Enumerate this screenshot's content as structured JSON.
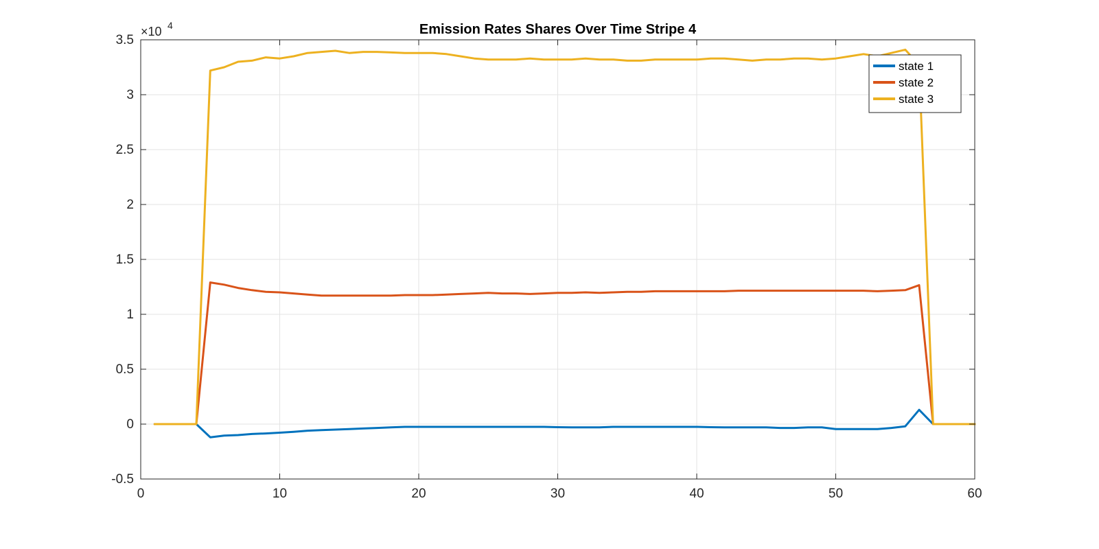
{
  "chart_data": {
    "type": "line",
    "title": "Emission Rates Shares Over Time Stripe 4",
    "xlabel": "",
    "ylabel": "",
    "xlim": [
      0,
      60
    ],
    "ylim": [
      -0.5,
      3.5
    ],
    "y_multiplier_label": {
      "base": "×10",
      "exponent": "4"
    },
    "x_ticks": [
      0,
      10,
      20,
      30,
      40,
      50,
      60
    ],
    "x_tick_labels": [
      "0",
      "10",
      "20",
      "30",
      "40",
      "50",
      "60"
    ],
    "y_ticks": [
      -0.5,
      0,
      0.5,
      1,
      1.5,
      2,
      2.5,
      3,
      3.5
    ],
    "y_tick_labels": [
      "-0.5",
      "0",
      "0.5",
      "1",
      "1.5",
      "2",
      "2.5",
      "3",
      "3.5"
    ],
    "grid": true,
    "legend_position": "top-right",
    "x": [
      1,
      2,
      3,
      4,
      5,
      6,
      7,
      8,
      9,
      10,
      11,
      12,
      13,
      14,
      15,
      16,
      17,
      18,
      19,
      20,
      21,
      22,
      23,
      24,
      25,
      26,
      27,
      28,
      29,
      30,
      31,
      32,
      33,
      34,
      35,
      36,
      37,
      38,
      39,
      40,
      41,
      42,
      43,
      44,
      45,
      46,
      47,
      48,
      49,
      50,
      51,
      52,
      53,
      54,
      55,
      56,
      57,
      58,
      59,
      60
    ],
    "series": [
      {
        "name": "state 1",
        "color": "#0072BD",
        "values": [
          0,
          0,
          0,
          0,
          -0.12,
          -0.105,
          -0.1,
          -0.09,
          -0.085,
          -0.078,
          -0.07,
          -0.06,
          -0.055,
          -0.05,
          -0.045,
          -0.04,
          -0.035,
          -0.03,
          -0.025,
          -0.025,
          -0.025,
          -0.025,
          -0.025,
          -0.025,
          -0.025,
          -0.025,
          -0.025,
          -0.025,
          -0.025,
          -0.028,
          -0.03,
          -0.03,
          -0.03,
          -0.025,
          -0.025,
          -0.025,
          -0.025,
          -0.025,
          -0.025,
          -0.025,
          -0.028,
          -0.03,
          -0.03,
          -0.03,
          -0.03,
          -0.035,
          -0.035,
          -0.03,
          -0.03,
          -0.045,
          -0.045,
          -0.045,
          -0.045,
          -0.035,
          -0.02,
          0.13,
          0,
          0,
          0,
          0
        ]
      },
      {
        "name": "state 2",
        "color": "#D95319",
        "values": [
          0,
          0,
          0,
          0,
          1.29,
          1.27,
          1.24,
          1.22,
          1.205,
          1.2,
          1.19,
          1.18,
          1.17,
          1.17,
          1.17,
          1.17,
          1.17,
          1.17,
          1.175,
          1.175,
          1.175,
          1.18,
          1.185,
          1.19,
          1.195,
          1.19,
          1.19,
          1.185,
          1.19,
          1.195,
          1.195,
          1.2,
          1.195,
          1.2,
          1.205,
          1.205,
          1.21,
          1.21,
          1.21,
          1.21,
          1.21,
          1.21,
          1.215,
          1.215,
          1.215,
          1.215,
          1.215,
          1.215,
          1.215,
          1.215,
          1.215,
          1.215,
          1.21,
          1.215,
          1.22,
          1.265,
          0,
          0,
          0,
          0
        ]
      },
      {
        "name": "state 3",
        "color": "#EDB120",
        "values": [
          0,
          0,
          0,
          0,
          3.22,
          3.25,
          3.3,
          3.31,
          3.34,
          3.33,
          3.35,
          3.38,
          3.39,
          3.4,
          3.38,
          3.39,
          3.39,
          3.385,
          3.38,
          3.38,
          3.38,
          3.37,
          3.35,
          3.33,
          3.32,
          3.32,
          3.32,
          3.33,
          3.32,
          3.32,
          3.32,
          3.33,
          3.32,
          3.32,
          3.31,
          3.31,
          3.32,
          3.32,
          3.32,
          3.32,
          3.33,
          3.33,
          3.32,
          3.31,
          3.32,
          3.32,
          3.33,
          3.33,
          3.32,
          3.33,
          3.35,
          3.37,
          3.35,
          3.38,
          3.41,
          3.27,
          0,
          0,
          0,
          0
        ]
      }
    ]
  }
}
